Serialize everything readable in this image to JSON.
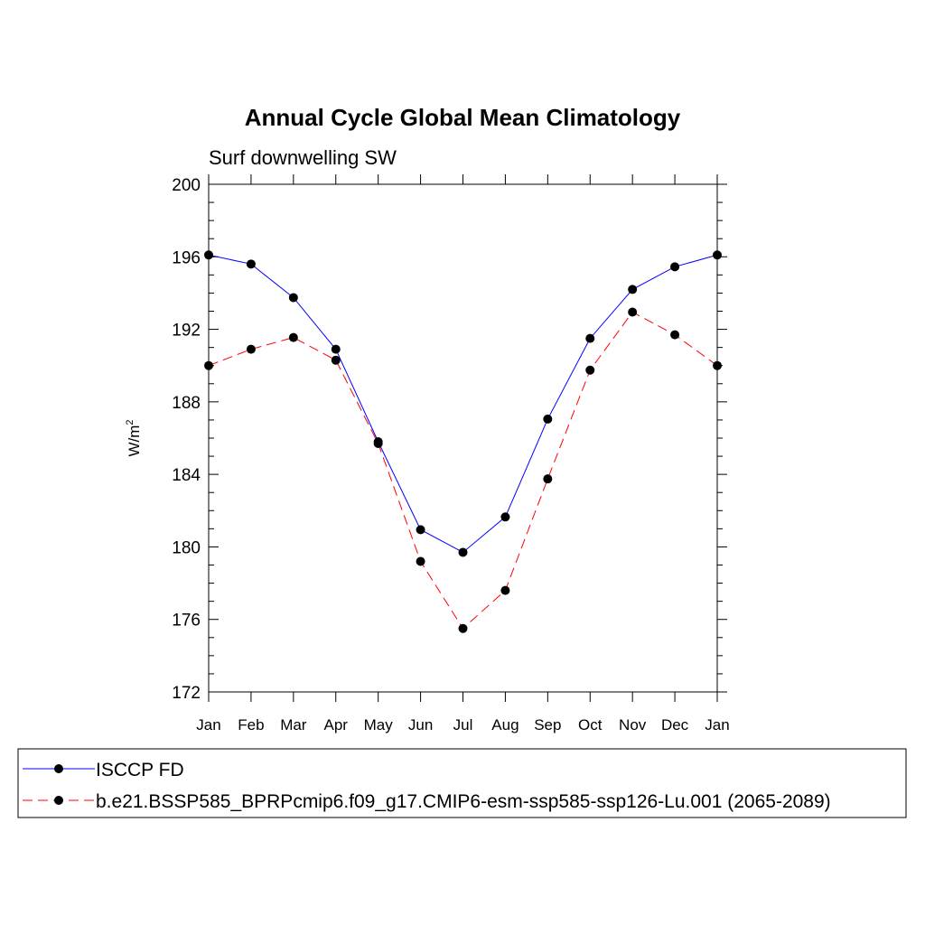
{
  "chart_data": {
    "type": "line",
    "title": "Annual Cycle Global Mean Climatology",
    "subtitle": "Surf downwelling SW",
    "ylabel": "W/m",
    "ylabel_superscript": "2",
    "categories": [
      "Jan",
      "Feb",
      "Mar",
      "Apr",
      "May",
      "Jun",
      "Jul",
      "Aug",
      "Sep",
      "Oct",
      "Nov",
      "Dec",
      "Jan"
    ],
    "ylim": [
      172,
      200
    ],
    "yticks": [
      172,
      176,
      180,
      184,
      188,
      192,
      196,
      200
    ],
    "grid": false,
    "legend_position": "bottom",
    "series": [
      {
        "name": "ISCCP FD",
        "color": "#0000ff",
        "dash": "solid",
        "marker": "filled-circle",
        "values": [
          196.1,
          195.6,
          193.75,
          190.9,
          185.8,
          180.95,
          179.7,
          181.65,
          187.05,
          191.5,
          194.2,
          195.45,
          196.1
        ]
      },
      {
        "name": "b.e21.BSSP585_BPRPcmip6.f09_g17.CMIP6-esm-ssp585-ssp126-Lu.001 (2065-2089)",
        "color": "#ff0000",
        "dash": "dashed",
        "marker": "filled-circle",
        "values": [
          190.0,
          190.9,
          191.55,
          190.3,
          185.7,
          179.2,
          175.5,
          177.6,
          183.75,
          189.75,
          192.95,
          191.7,
          190.0
        ]
      }
    ]
  }
}
